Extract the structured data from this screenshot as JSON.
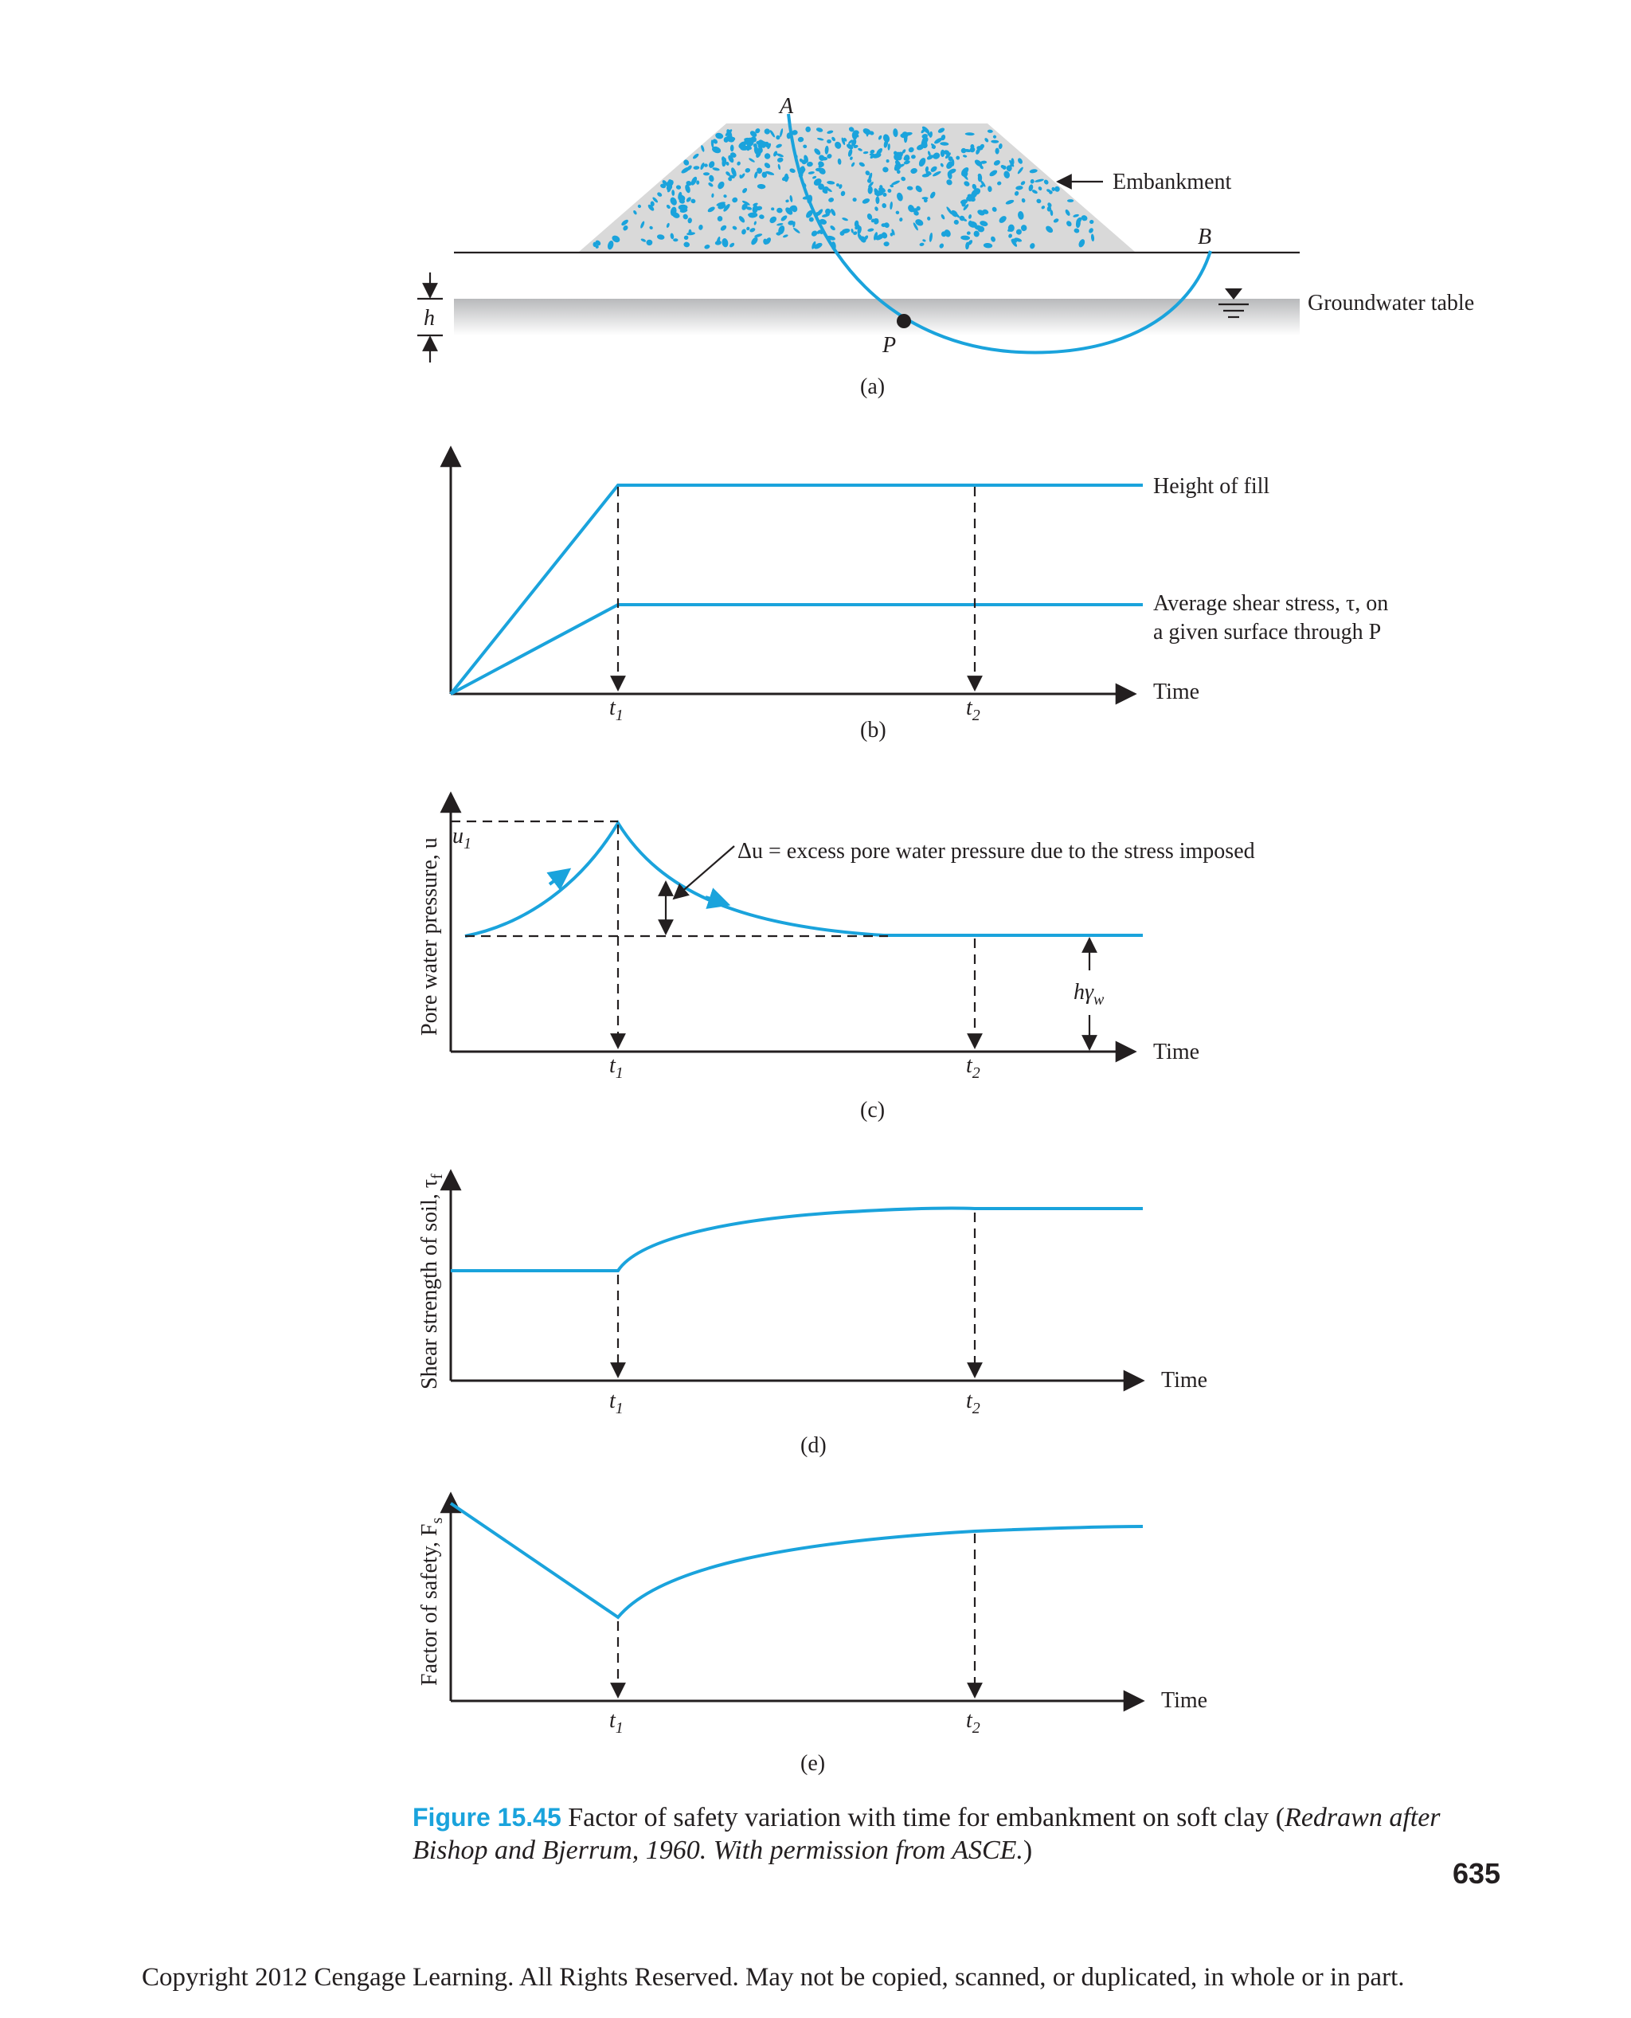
{
  "colors": {
    "accent": "#1aa3dc",
    "ink": "#231f20",
    "embankment_fill": "#d9d9d9"
  },
  "panel_a": {
    "label": "(a)",
    "point_a": "A",
    "point_b": "B",
    "point_p": "P",
    "embankment": "Embankment",
    "groundwater_table": "Groundwater table",
    "h": "h"
  },
  "panel_b": {
    "label": "(b)",
    "height_of_fill": "Height of fill",
    "shear_stress_line1": "Average shear stress, τ, on",
    "shear_stress_line2": "a given surface through P",
    "time": "Time",
    "t1": "t1",
    "t2": "t2"
  },
  "panel_c": {
    "label": "(c)",
    "ylabel": "Pore water pressure, u",
    "u1": "u1",
    "delta_u": "Δu = excess pore water pressure due to the stress imposed",
    "h_gamma_w": "hγw",
    "time": "Time",
    "t1": "t1",
    "t2": "t2"
  },
  "panel_d": {
    "label": "(d)",
    "ylabel": "Shear strength of soil, τf",
    "time": "Time",
    "t1": "t1",
    "t2": "t2"
  },
  "panel_e": {
    "label": "(e)",
    "ylabel": "Factor of safety, Fs",
    "time": "Time",
    "t1": "t1",
    "t2": "t2"
  },
  "caption": {
    "number": "Figure 15.45",
    "text": " Factor of safety variation with time for embankment on soft clay (",
    "italic_line1": "Redrawn after",
    "italic_line2": "Bishop and Bjerrum, 1960. With permission from ASCE.",
    "close": ")"
  },
  "page_number": "635",
  "copyright": "Copyright 2012 Cengage Learning. All Rights Reserved. May not be copied, scanned, or duplicated, in whole or in part."
}
